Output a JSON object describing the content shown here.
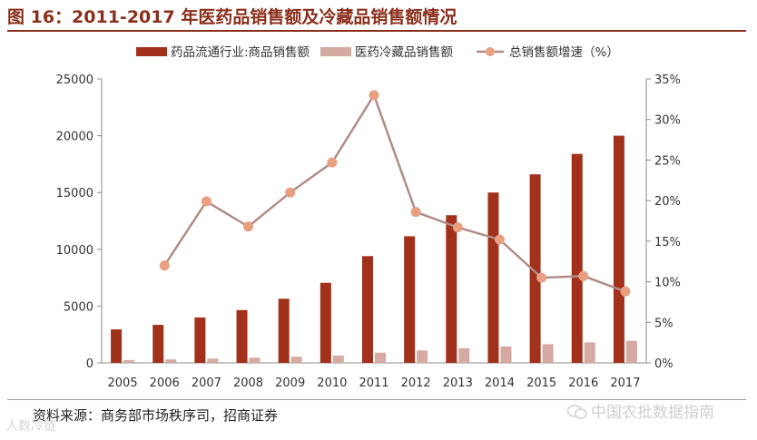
{
  "title": "图 16：2011-2017 年医药品销售额及冷藏品销售额情况",
  "source": "资料来源：商务部市场秩序司，招商证券",
  "watermark_right": "中国农批数据指南",
  "watermark_left": "人数冷链",
  "chart_data": {
    "type": "bar",
    "categories": [
      "2005",
      "2006",
      "2007",
      "2008",
      "2009",
      "2010",
      "2011",
      "2012",
      "2013",
      "2014",
      "2015",
      "2016",
      "2017"
    ],
    "series": [
      {
        "name": "药品流通行业:商品销售额",
        "kind": "bar",
        "axis": "left",
        "color": "#a1311a",
        "values": [
          2950,
          3350,
          4000,
          4650,
          5650,
          7050,
          9400,
          11150,
          13000,
          15000,
          16600,
          18400,
          20000
        ]
      },
      {
        "name": "医药冷藏品销售额",
        "kind": "bar",
        "axis": "left",
        "color": "#d4aaa2",
        "values": [
          250,
          300,
          380,
          460,
          550,
          650,
          900,
          1100,
          1300,
          1450,
          1650,
          1800,
          1950
        ]
      },
      {
        "name": "总销售额增速（%）",
        "kind": "line",
        "axis": "right",
        "color": "#b08d88",
        "marker_color": "#e89f82",
        "values": [
          null,
          12.0,
          19.9,
          16.8,
          21.0,
          24.7,
          33.0,
          18.6,
          16.7,
          15.2,
          10.5,
          10.7,
          8.8
        ]
      }
    ],
    "yleft": {
      "min": 0,
      "max": 25000,
      "ticks": [
        0,
        5000,
        10000,
        15000,
        20000,
        25000
      ],
      "tick_labels": [
        "0",
        "5000",
        "10000",
        "15000",
        "20000",
        "25000"
      ]
    },
    "yright": {
      "min": 0,
      "max": 35,
      "ticks": [
        0,
        5,
        10,
        15,
        20,
        25,
        30,
        35
      ],
      "tick_labels": [
        "0%",
        "5%",
        "10%",
        "15%",
        "20%",
        "25%",
        "30%",
        "35%"
      ]
    },
    "legend_position": "top",
    "grid": false
  }
}
